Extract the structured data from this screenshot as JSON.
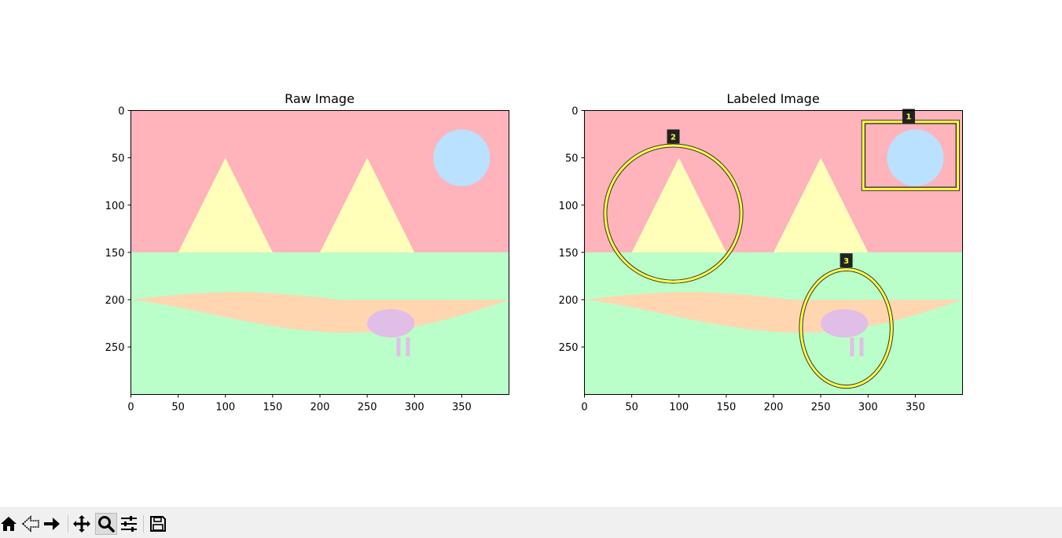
{
  "panels": [
    {
      "id": "raw",
      "title": "Raw Image",
      "xticks": [
        "0",
        "50",
        "100",
        "150",
        "200",
        "250",
        "300",
        "350"
      ],
      "yticks": [
        "0",
        "50",
        "100",
        "150",
        "200",
        "250"
      ]
    },
    {
      "id": "labeled",
      "title": "Labeled Image",
      "xticks": [
        "0",
        "50",
        "100",
        "150",
        "200",
        "250",
        "300",
        "350"
      ],
      "yticks": [
        "0",
        "50",
        "100",
        "150",
        "200",
        "250"
      ]
    }
  ],
  "image_extent": {
    "width": 400,
    "height": 300
  },
  "scene_colors": {
    "sky": "#ffb3ba",
    "ground": "#baffc9",
    "river": "#ffd6b0",
    "mountain": "#ffffba",
    "sun": "#bae1ff",
    "animal": "#e1bee7"
  },
  "annotation_colors": {
    "outline": "#ffff44",
    "edge": "#333333",
    "label_bg": "#222222",
    "label_text": "#ffff44"
  },
  "annotations": [
    {
      "label": "1",
      "shape": "rectangle",
      "target": "sun"
    },
    {
      "label": "2",
      "shape": "ellipse",
      "target": "left mountain"
    },
    {
      "label": "3",
      "shape": "ellipse",
      "target": "animal"
    }
  ],
  "toolbar": {
    "buttons": [
      {
        "name": "home-button",
        "icon": "home-icon"
      },
      {
        "name": "back-button",
        "icon": "back-arrow-icon"
      },
      {
        "name": "forward-button",
        "icon": "forward-arrow-icon"
      },
      {
        "name": "pan-button",
        "icon": "move-icon"
      },
      {
        "name": "zoom-button",
        "icon": "magnifier-icon",
        "active": true
      },
      {
        "name": "configure-subplots-button",
        "icon": "sliders-icon"
      },
      {
        "name": "save-button",
        "icon": "floppy-disk-icon"
      }
    ]
  }
}
